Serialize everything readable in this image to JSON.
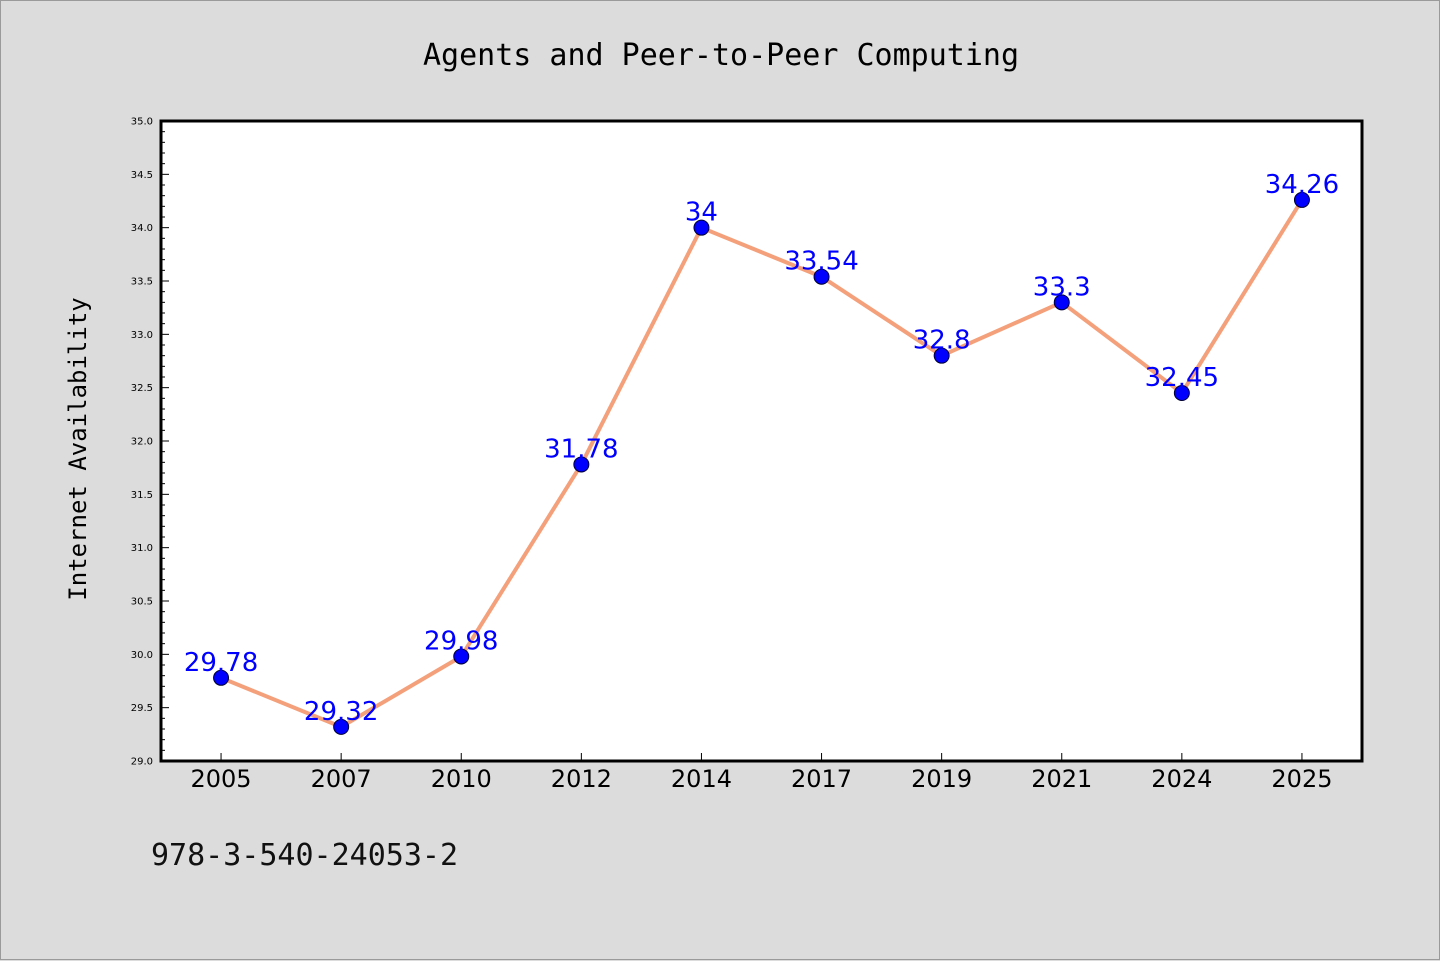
{
  "chart_data": {
    "type": "line",
    "title": "Agents and Peer-to-Peer Computing",
    "xlabel": "",
    "ylabel": "Internet Availability",
    "categories": [
      "2005",
      "2007",
      "2010",
      "2012",
      "2014",
      "2017",
      "2019",
      "2021",
      "2024",
      "2025"
    ],
    "values": [
      29.78,
      29.32,
      29.98,
      31.78,
      34,
      33.54,
      32.8,
      33.3,
      32.45,
      34.26
    ],
    "data_labels": [
      "29.78",
      "29.32",
      "29.98",
      "31.78",
      "34",
      "33.54",
      "32.8",
      "33.3",
      "32.45",
      "34.26"
    ],
    "ylim": [
      29.0,
      35.0
    ],
    "yticks": [
      "29.0",
      "29.5",
      "30.0",
      "30.5",
      "31.0",
      "31.5",
      "32.0",
      "32.5",
      "33.0",
      "33.5",
      "34.0",
      "34.5",
      "35.0"
    ],
    "grid": false,
    "line_color": "#f4a07a",
    "marker_color": "#0000ff",
    "label_color": "#0000ff",
    "background": "#dcdcdc",
    "plot_background": "#ffffff"
  },
  "footer": {
    "isbn": "978-3-540-24053-2"
  }
}
